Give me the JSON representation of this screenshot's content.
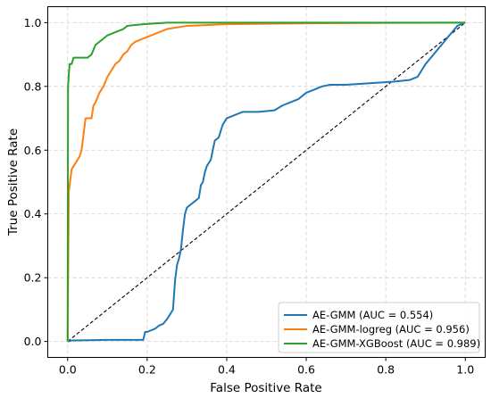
{
  "chart_data": {
    "type": "line",
    "title": "",
    "xlabel": "False Positive Rate",
    "ylabel": "True Positive Rate",
    "xlim": [
      -0.05,
      1.05
    ],
    "ylim": [
      -0.05,
      1.05
    ],
    "xticks": [
      "0.0",
      "0.2",
      "0.4",
      "0.6",
      "0.8",
      "1.0"
    ],
    "yticks": [
      "0.0",
      "0.2",
      "0.4",
      "0.6",
      "0.8",
      "1.0"
    ],
    "grid": true,
    "legend_position": "lower-right",
    "series": [
      {
        "name": "AE-GMM (AUC = 0.554)",
        "color": "#1f77b4",
        "points": [
          [
            0,
            0
          ],
          [
            0.01,
            0.003
          ],
          [
            0.05,
            0.004
          ],
          [
            0.1,
            0.005
          ],
          [
            0.15,
            0.005
          ],
          [
            0.19,
            0.005
          ],
          [
            0.195,
            0.03
          ],
          [
            0.2,
            0.03
          ],
          [
            0.21,
            0.035
          ],
          [
            0.22,
            0.04
          ],
          [
            0.23,
            0.05
          ],
          [
            0.24,
            0.055
          ],
          [
            0.25,
            0.07
          ],
          [
            0.26,
            0.09
          ],
          [
            0.265,
            0.1
          ],
          [
            0.27,
            0.19
          ],
          [
            0.275,
            0.24
          ],
          [
            0.28,
            0.26
          ],
          [
            0.285,
            0.29
          ],
          [
            0.29,
            0.35
          ],
          [
            0.295,
            0.4
          ],
          [
            0.3,
            0.42
          ],
          [
            0.31,
            0.43
          ],
          [
            0.32,
            0.44
          ],
          [
            0.33,
            0.45
          ],
          [
            0.335,
            0.49
          ],
          [
            0.34,
            0.5
          ],
          [
            0.345,
            0.53
          ],
          [
            0.35,
            0.55
          ],
          [
            0.36,
            0.57
          ],
          [
            0.37,
            0.63
          ],
          [
            0.38,
            0.64
          ],
          [
            0.39,
            0.68
          ],
          [
            0.4,
            0.7
          ],
          [
            0.42,
            0.71
          ],
          [
            0.44,
            0.72
          ],
          [
            0.48,
            0.72
          ],
          [
            0.52,
            0.725
          ],
          [
            0.54,
            0.74
          ],
          [
            0.56,
            0.75
          ],
          [
            0.58,
            0.76
          ],
          [
            0.6,
            0.78
          ],
          [
            0.62,
            0.79
          ],
          [
            0.64,
            0.8
          ],
          [
            0.66,
            0.805
          ],
          [
            0.7,
            0.805
          ],
          [
            0.76,
            0.81
          ],
          [
            0.82,
            0.815
          ],
          [
            0.86,
            0.82
          ],
          [
            0.88,
            0.83
          ],
          [
            0.9,
            0.87
          ],
          [
            0.92,
            0.9
          ],
          [
            0.94,
            0.93
          ],
          [
            0.96,
            0.96
          ],
          [
            0.98,
            0.99
          ],
          [
            1.0,
            1.0
          ]
        ]
      },
      {
        "name": "AE-GMM-logreg (AUC = 0.956)",
        "color": "#ff7f0e",
        "points": [
          [
            0,
            0
          ],
          [
            0.003,
            0.47
          ],
          [
            0.006,
            0.5
          ],
          [
            0.01,
            0.54
          ],
          [
            0.02,
            0.56
          ],
          [
            0.03,
            0.58
          ],
          [
            0.035,
            0.6
          ],
          [
            0.04,
            0.65
          ],
          [
            0.045,
            0.7
          ],
          [
            0.06,
            0.7
          ],
          [
            0.065,
            0.74
          ],
          [
            0.07,
            0.75
          ],
          [
            0.08,
            0.78
          ],
          [
            0.09,
            0.8
          ],
          [
            0.1,
            0.83
          ],
          [
            0.11,
            0.85
          ],
          [
            0.12,
            0.87
          ],
          [
            0.13,
            0.88
          ],
          [
            0.14,
            0.9
          ],
          [
            0.15,
            0.91
          ],
          [
            0.16,
            0.93
          ],
          [
            0.17,
            0.94
          ],
          [
            0.19,
            0.95
          ],
          [
            0.21,
            0.96
          ],
          [
            0.23,
            0.97
          ],
          [
            0.25,
            0.98
          ],
          [
            0.3,
            0.99
          ],
          [
            0.4,
            0.995
          ],
          [
            0.6,
            0.998
          ],
          [
            1.0,
            1.0
          ]
        ]
      },
      {
        "name": "AE-GMM-XGBoost (AUC = 0.989)",
        "color": "#2ca02c",
        "points": [
          [
            0,
            0
          ],
          [
            0.001,
            0.8
          ],
          [
            0.003,
            0.84
          ],
          [
            0.005,
            0.87
          ],
          [
            0.01,
            0.87
          ],
          [
            0.015,
            0.89
          ],
          [
            0.05,
            0.89
          ],
          [
            0.06,
            0.9
          ],
          [
            0.07,
            0.93
          ],
          [
            0.08,
            0.94
          ],
          [
            0.09,
            0.95
          ],
          [
            0.1,
            0.96
          ],
          [
            0.12,
            0.97
          ],
          [
            0.14,
            0.98
          ],
          [
            0.15,
            0.99
          ],
          [
            0.19,
            0.995
          ],
          [
            0.25,
            1.0
          ],
          [
            1.0,
            1.0
          ]
        ]
      },
      {
        "name": "",
        "color": "#000000",
        "dashed": true,
        "points": [
          [
            0,
            0
          ],
          [
            1,
            1
          ]
        ]
      }
    ]
  }
}
